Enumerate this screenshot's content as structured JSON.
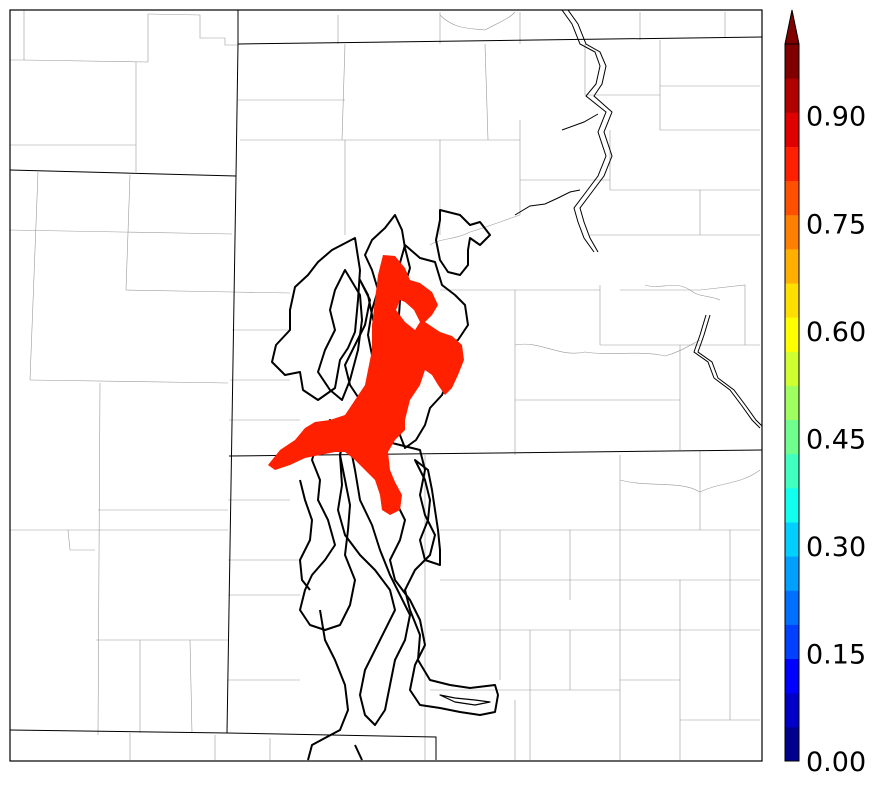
{
  "colorbar": {
    "tick_labels": [
      "0.00",
      "0.15",
      "0.30",
      "0.45",
      "0.60",
      "0.75",
      "0.90"
    ],
    "colors": [
      "#00008f",
      "#0000c8",
      "#0000ff",
      "#0040ff",
      "#0070ff",
      "#00a0ff",
      "#00cfff",
      "#10ffef",
      "#40ffbf",
      "#70ff8f",
      "#a0ff60",
      "#cfff30",
      "#ffff00",
      "#ffdf00",
      "#ffaf00",
      "#ff8000",
      "#ff5000",
      "#ff2000",
      "#e00000",
      "#b00000",
      "#800000"
    ],
    "extend": "max"
  },
  "shading": {
    "probability_color": "#ff2000"
  }
}
